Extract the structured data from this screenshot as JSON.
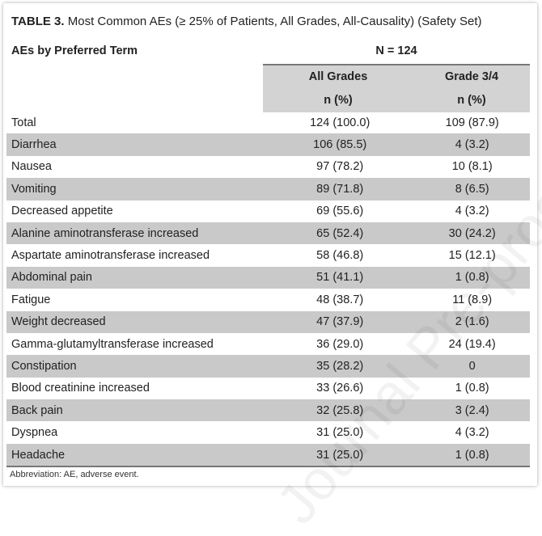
{
  "title": {
    "label": "TABLE 3.",
    "text": " Most Common AEs (≥ 25% of Patients, All Grades, All-Causality) (Safety Set)"
  },
  "header": {
    "term": "AEs by Preferred Term",
    "n": "N = 124",
    "col1": "All Grades",
    "col2": "Grade 3/4",
    "unit1": "n (%)",
    "unit2": "n (%)"
  },
  "rows": [
    {
      "term": "Total",
      "all": "124 (100.0)",
      "g34": "109 (87.9)"
    },
    {
      "term": "Diarrhea",
      "all": "106 (85.5)",
      "g34": "4 (3.2)"
    },
    {
      "term": "Nausea",
      "all": "97 (78.2)",
      "g34": "10 (8.1)"
    },
    {
      "term": "Vomiting",
      "all": "89 (71.8)",
      "g34": "8 (6.5)"
    },
    {
      "term": "Decreased appetite",
      "all": "69 (55.6)",
      "g34": "4 (3.2)"
    },
    {
      "term": "Alanine aminotransferase increased",
      "all": "65 (52.4)",
      "g34": "30 (24.2)"
    },
    {
      "term": "Aspartate aminotransferase increased",
      "all": "58 (46.8)",
      "g34": "15 (12.1)"
    },
    {
      "term": "Abdominal pain",
      "all": "51 (41.1)",
      "g34": "1 (0.8)"
    },
    {
      "term": "Fatigue",
      "all": "48 (38.7)",
      "g34": "11 (8.9)"
    },
    {
      "term": "Weight decreased",
      "all": "47 (37.9)",
      "g34": "2 (1.6)"
    },
    {
      "term": "Gamma-glutamyltransferase increased",
      "all": "36 (29.0)",
      "g34": "24 (19.4)"
    },
    {
      "term": "Constipation",
      "all": "35 (28.2)",
      "g34": "0"
    },
    {
      "term": "Blood creatinine increased",
      "all": "33 (26.6)",
      "g34": "1 (0.8)"
    },
    {
      "term": "Back pain",
      "all": "32 (25.8)",
      "g34": "3 (2.4)"
    },
    {
      "term": "Dyspnea",
      "all": "31 (25.0)",
      "g34": "4 (3.2)"
    },
    {
      "term": "Headache",
      "all": "31 (25.0)",
      "g34": "1 (0.8)"
    }
  ],
  "footnote": "Abbreviation: AE, adverse event.",
  "watermark": "Journal Pre-proof"
}
